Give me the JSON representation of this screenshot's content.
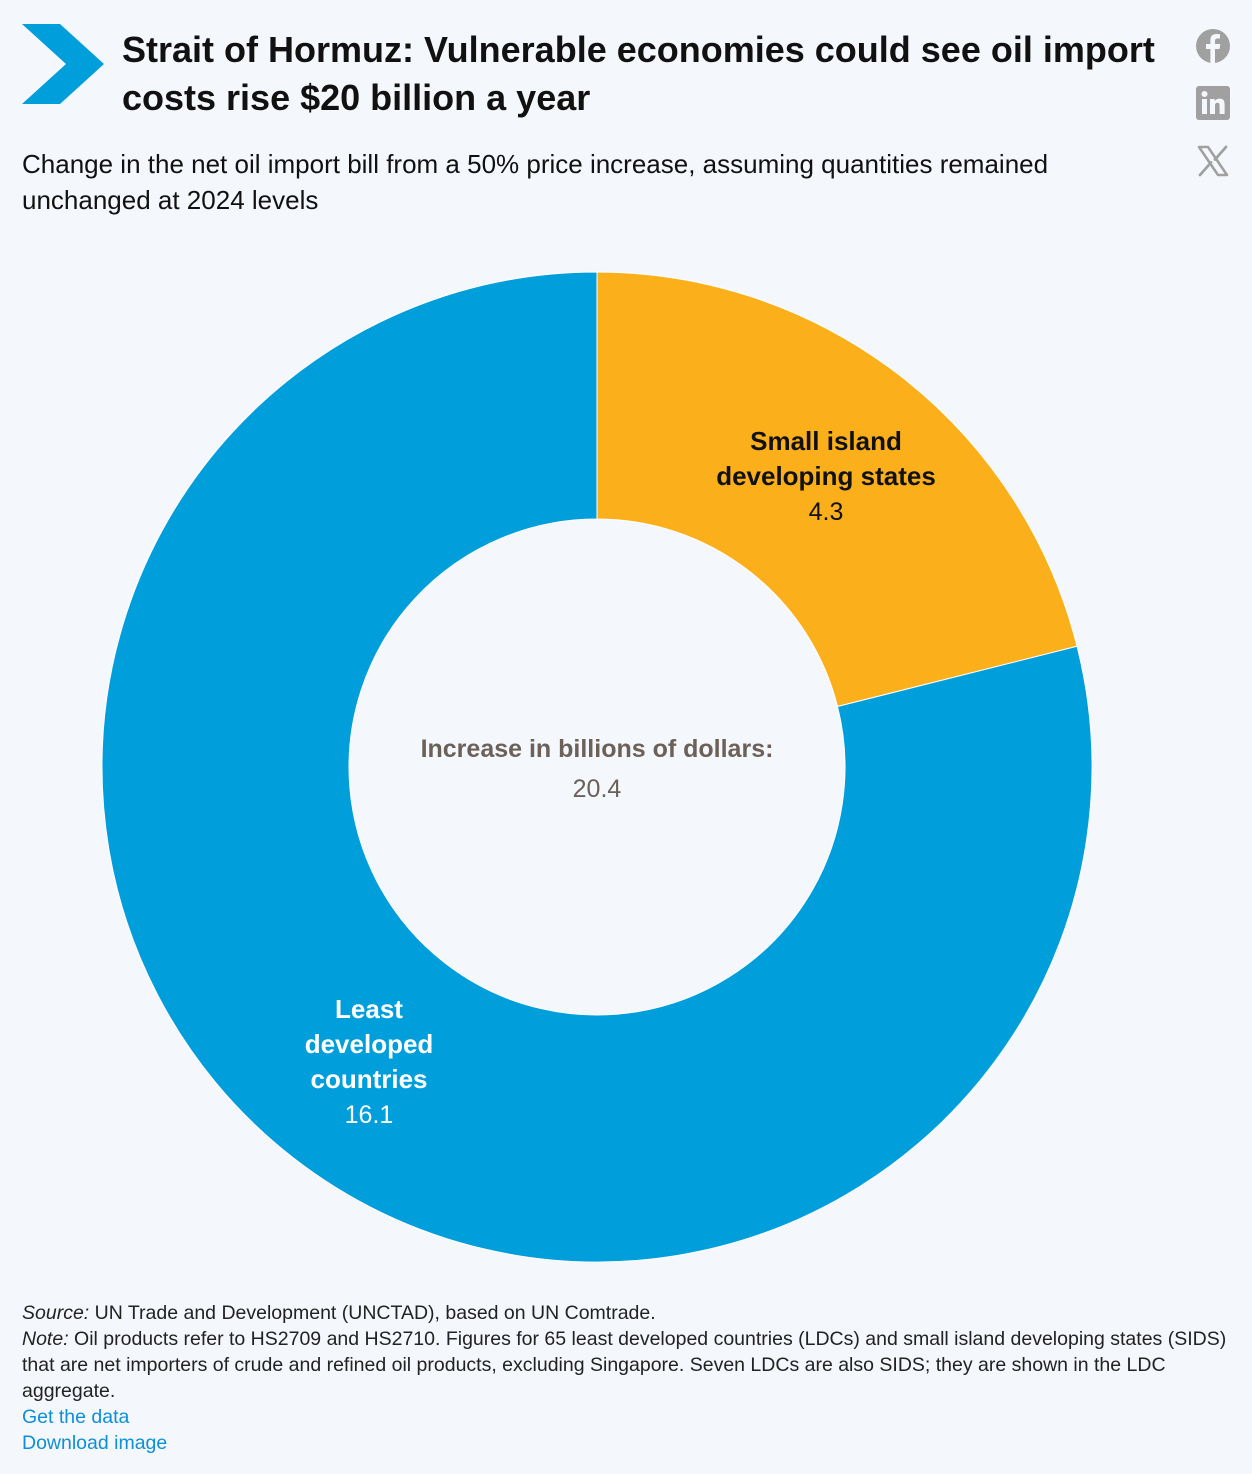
{
  "header": {
    "title": "Strait of Hormuz: Vulnerable economies could see oil import costs rise $20 billion a year",
    "subtitle": "Change in the net oil import bill from a 50% price increase, assuming quantities remained unchanged at 2024 levels"
  },
  "share": {
    "icons": [
      "facebook-icon",
      "linkedin-icon",
      "x-icon"
    ]
  },
  "colors": {
    "brand": "#009edb",
    "ldc": "#009edb",
    "sids": "#fbb01b",
    "icon_gray": "#a0a0a0"
  },
  "chart_data": {
    "type": "pie",
    "donut": true,
    "center_label": "Increase in billions of dollars:",
    "center_value": "20.4",
    "slices": [
      {
        "label_lines": [
          "Small island",
          "developing states"
        ],
        "value": 4.3,
        "value_text": "4.3",
        "color": "#fbb01b"
      },
      {
        "label_lines": [
          "Least",
          "developed",
          "countries"
        ],
        "value": 16.1,
        "value_text": "16.1",
        "color": "#009edb"
      }
    ]
  },
  "footer": {
    "source_label": "Source:",
    "source_text": " UN Trade and Development (UNCTAD), based on UN Comtrade.",
    "note_label": "Note:",
    "note_text": " Oil products refer to HS2709 and HS2710. Figures for 65 least developed countries (LDCs) and small island developing states (SIDS) that are net importers of crude and refined oil products, excluding Singapore. Seven LDCs are also SIDS; they are shown in the LDC aggregate.",
    "link_data": "Get the data",
    "link_download": "Download image"
  }
}
